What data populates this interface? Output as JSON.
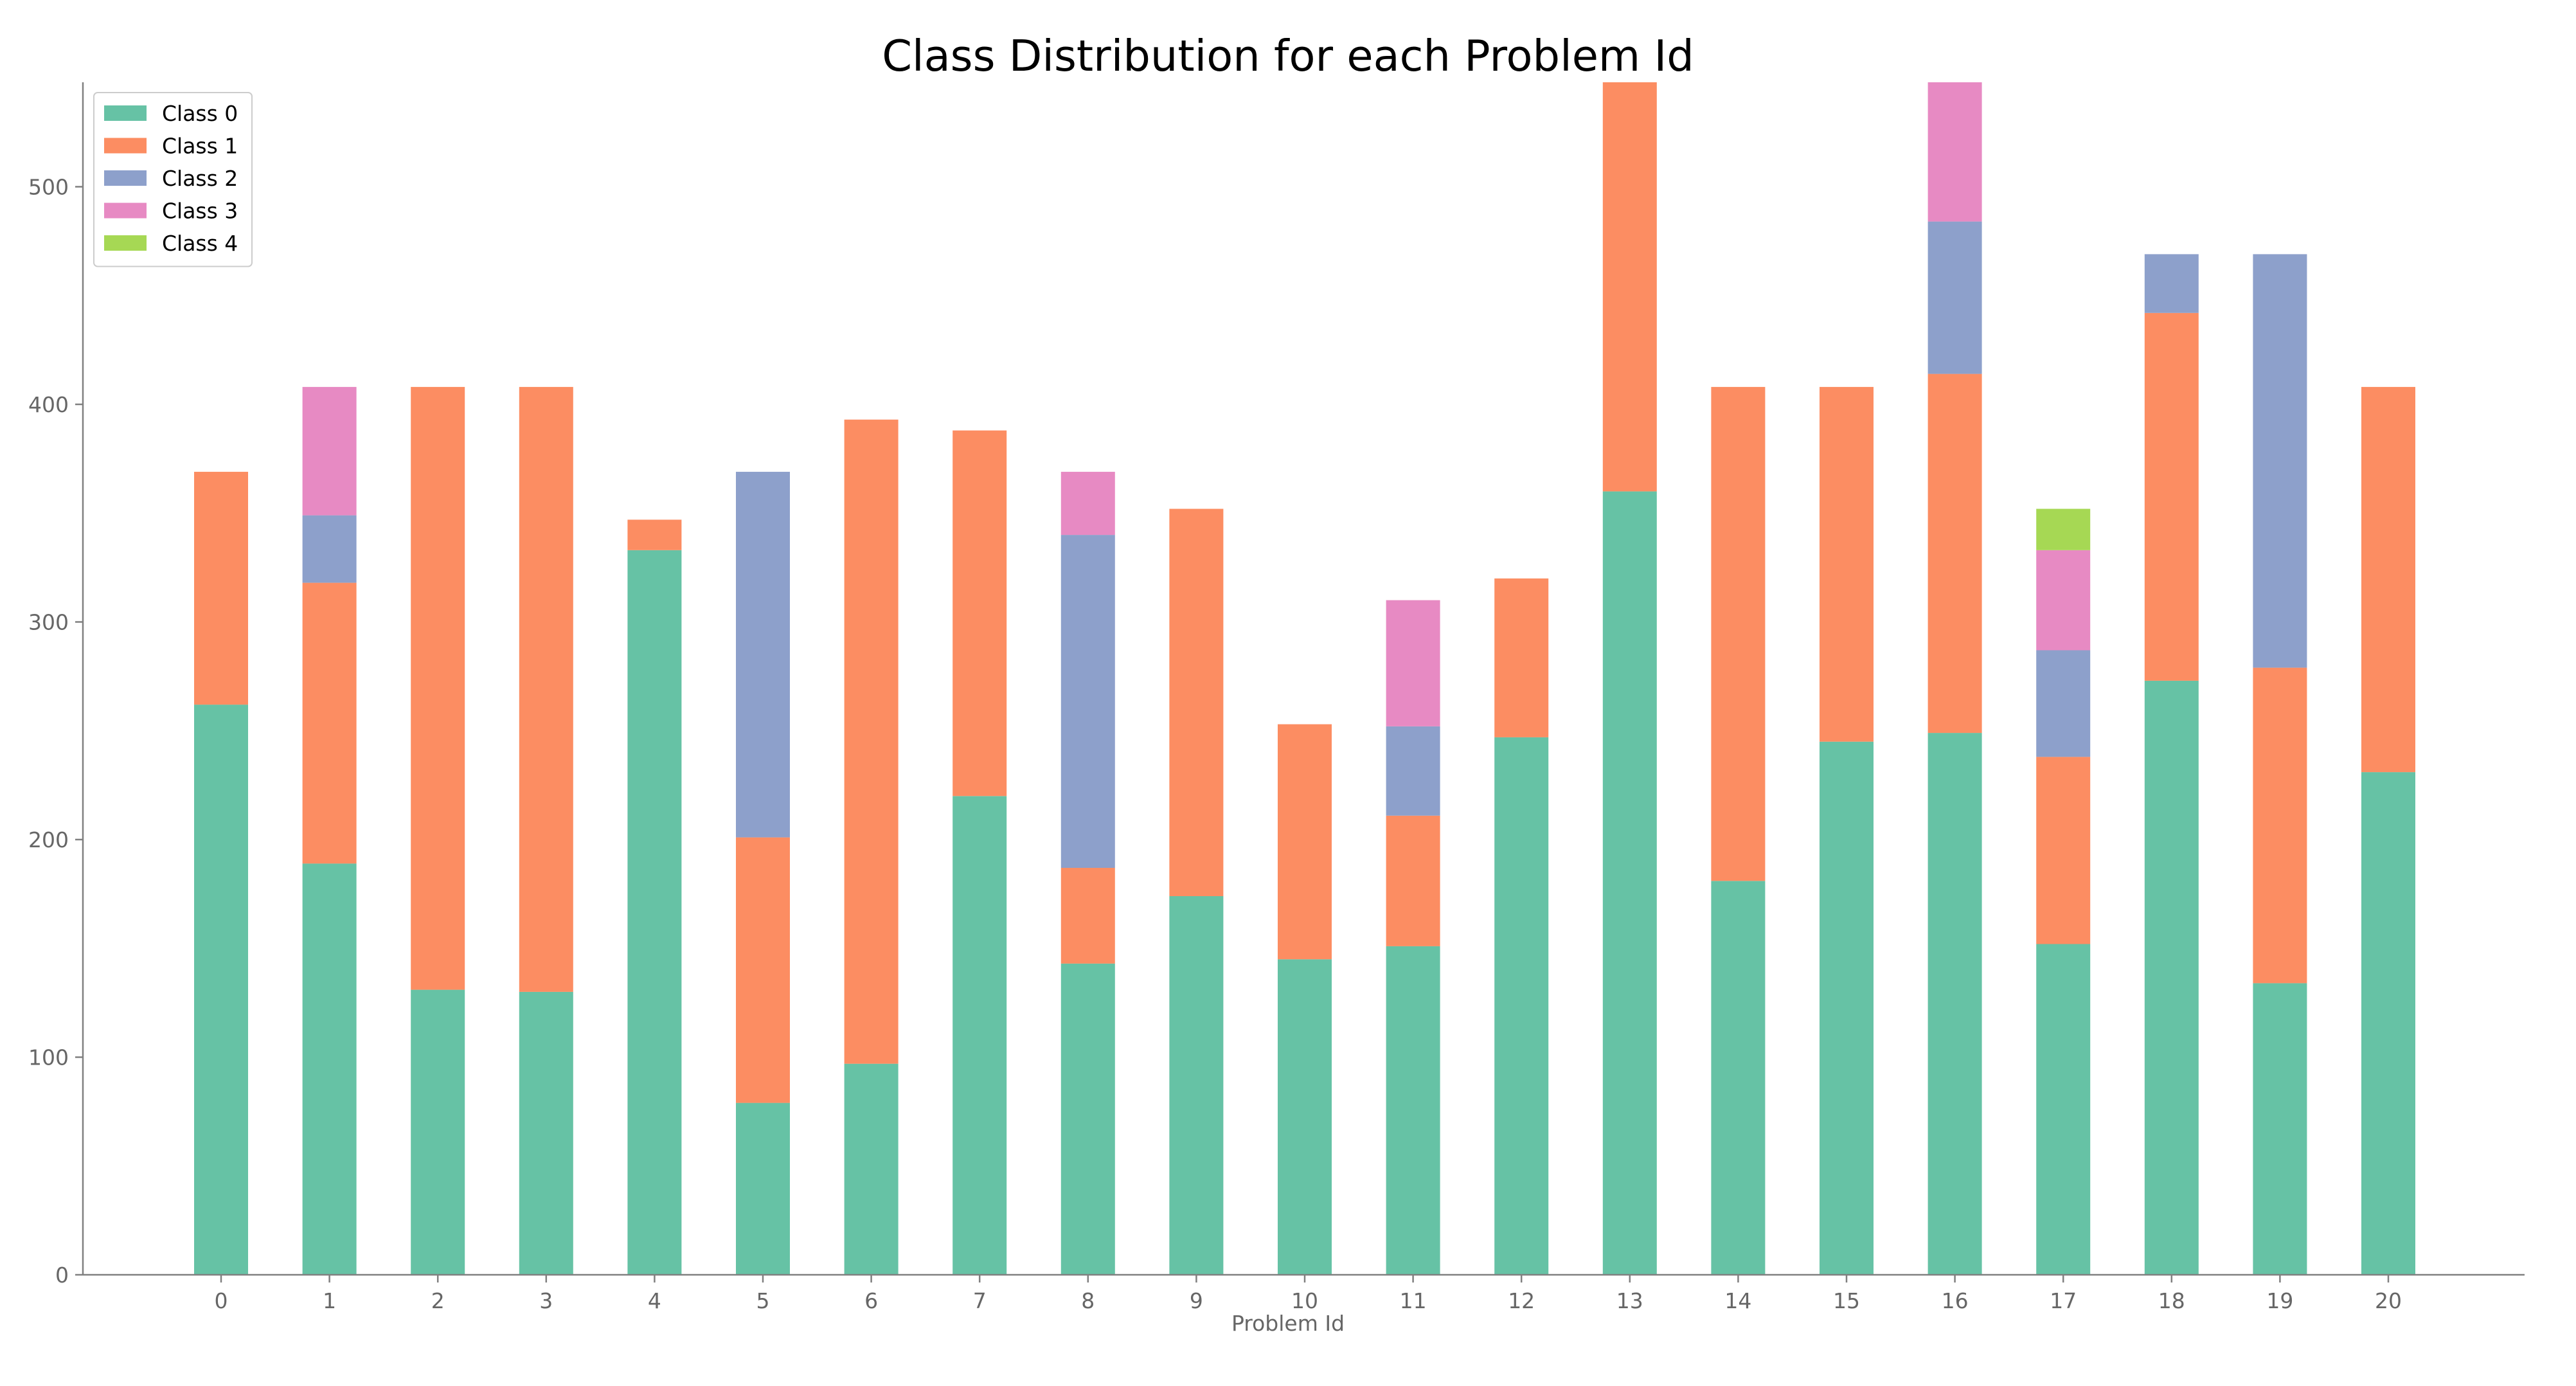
{
  "chart_data": {
    "type": "bar",
    "stacked": true,
    "title": "Class Distribution for each Problem Id",
    "xlabel": "Problem Id",
    "ylabel": "",
    "ylim": [
      0,
      548
    ],
    "yticks": [
      0,
      100,
      200,
      300,
      400,
      500
    ],
    "grid": false,
    "legend_position": "top-left",
    "categories": [
      "0",
      "1",
      "2",
      "3",
      "4",
      "5",
      "6",
      "7",
      "8",
      "9",
      "10",
      "11",
      "12",
      "13",
      "14",
      "15",
      "16",
      "17",
      "18",
      "19",
      "20"
    ],
    "series": [
      {
        "name": "Class 0",
        "color": "#66c2a5",
        "values": [
          262,
          189,
          131,
          130,
          333,
          79,
          97,
          220,
          143,
          174,
          145,
          151,
          247,
          360,
          181,
          245,
          249,
          152,
          273,
          134,
          231
        ]
      },
      {
        "name": "Class 1",
        "color": "#fc8d62",
        "values": [
          107,
          129,
          277,
          278,
          14,
          122,
          296,
          168,
          44,
          178,
          108,
          60,
          73,
          188,
          227,
          163,
          165,
          86,
          169,
          145,
          177
        ]
      },
      {
        "name": "Class 2",
        "color": "#8da0cb",
        "values": [
          0,
          31,
          0,
          0,
          0,
          168,
          0,
          0,
          153,
          0,
          0,
          41,
          0,
          0,
          0,
          0,
          70,
          49,
          27,
          190,
          0
        ]
      },
      {
        "name": "Class 3",
        "color": "#e78ac3",
        "values": [
          0,
          59,
          0,
          0,
          0,
          0,
          0,
          0,
          29,
          0,
          0,
          58,
          0,
          0,
          0,
          0,
          64,
          46,
          0,
          0,
          0
        ]
      },
      {
        "name": "Class 4",
        "color": "#a6d854",
        "values": [
          0,
          0,
          0,
          0,
          0,
          0,
          0,
          0,
          0,
          0,
          0,
          0,
          0,
          0,
          0,
          0,
          0,
          19,
          0,
          0,
          0
        ]
      }
    ]
  }
}
